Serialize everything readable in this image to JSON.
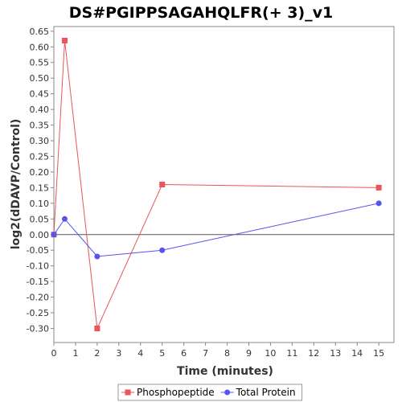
{
  "chart_data": {
    "type": "line",
    "title": "DS#PGIPPSAGAHQLFR(+ 3)_v1",
    "xlabel": "Time (minutes)",
    "ylabel": "log2(dDAVP/Control)",
    "xlim": [
      0,
      15.7
    ],
    "ylim": [
      -0.345,
      0.665
    ],
    "x_ticks": [
      0,
      1,
      2,
      3,
      4,
      5,
      6,
      7,
      8,
      9,
      10,
      11,
      12,
      13,
      14,
      15
    ],
    "y_ticks": [
      0.65,
      0.6,
      0.55,
      0.5,
      0.45,
      0.4,
      0.35,
      0.3,
      0.25,
      0.2,
      0.15,
      0.1,
      0.05,
      0.0,
      -0.05,
      -0.1,
      -0.15,
      -0.2,
      -0.25,
      -0.3
    ],
    "y_tick_labels": [
      "0.65",
      "0.60",
      "0.55",
      "0.50",
      "0.45",
      "0.40",
      "0.35",
      "0.30",
      "0.25",
      "0.20",
      "0.15",
      "0.10",
      "0.05",
      "0.00",
      "-0.05",
      "-0.10",
      "-0.15",
      "-0.20",
      "-0.25",
      "-0.30"
    ],
    "grid": false,
    "legend_position": "bottom",
    "series": [
      {
        "name": "Phosphopeptide",
        "color": "#e8555a",
        "marker": "square",
        "x": [
          0,
          0.5,
          2,
          5,
          15
        ],
        "y": [
          0.0,
          0.62,
          -0.3,
          0.16,
          0.15
        ]
      },
      {
        "name": "Total Protein",
        "color": "#5555ee",
        "marker": "circle",
        "x": [
          0,
          0.5,
          2,
          5,
          15
        ],
        "y": [
          0.0,
          0.05,
          -0.07,
          -0.05,
          0.1
        ]
      }
    ]
  }
}
